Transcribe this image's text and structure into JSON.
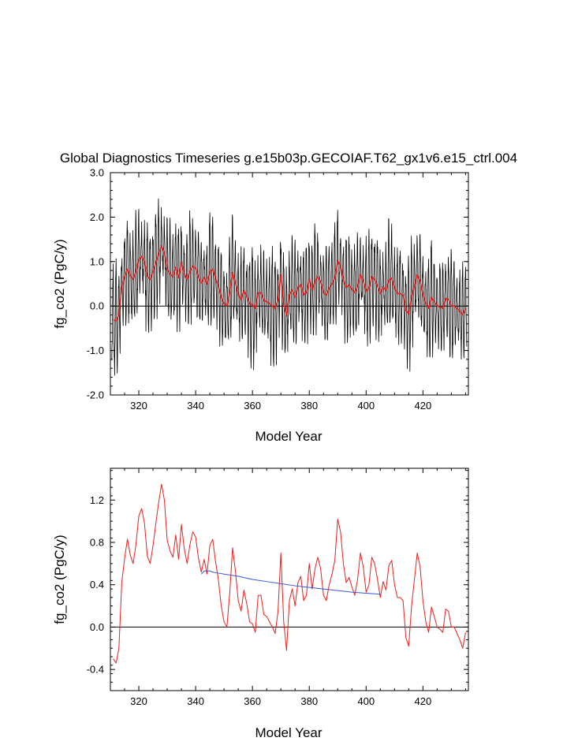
{
  "title": "Global Diagnostics Timeseries g.e15b03p.GECOIAF.T62_gx1v6.e15_ctrl.004",
  "colors": {
    "monthly": "#000000",
    "annual": "#e8201e",
    "trend": "#3a56d4",
    "zero": "#000000"
  },
  "chart_data": [
    {
      "type": "line",
      "ylabel": "fg_co2 (PgC/y)",
      "xlabel": "Model Year",
      "xlim": [
        310,
        436
      ],
      "ylim": [
        -2.0,
        3.0
      ],
      "xticks": [
        320,
        340,
        360,
        380,
        400,
        420
      ],
      "xtick_labels": [
        "320",
        "340",
        "360",
        "380",
        "400",
        "420"
      ],
      "yticks": [
        -2,
        -1,
        0,
        1,
        2,
        3
      ],
      "ytick_labels": [
        "-2.0",
        "-1.0",
        "0.0",
        "1.0",
        "2.0",
        "3.0"
      ],
      "reference_line_y": 0,
      "series": [
        {
          "style": "monthly",
          "color": "#000000",
          "note_values": "monthly values oscillate around the annual means with amplitude about ±1.0 PgC/y; max ~2.7 near year 329, min ~-1.45 near years 311 and 375"
        },
        {
          "style": "annual-mean",
          "color": "#e8201e",
          "x": [
            311,
            312,
            313,
            314,
            315,
            316,
            317,
            318,
            319,
            320,
            321,
            322,
            323,
            324,
            325,
            326,
            327,
            328,
            329,
            330,
            331,
            332,
            333,
            334,
            335,
            336,
            337,
            338,
            339,
            340,
            341,
            342,
            343,
            344,
            345,
            346,
            347,
            348,
            349,
            350,
            351,
            352,
            353,
            354,
            355,
            356,
            357,
            358,
            359,
            360,
            361,
            362,
            363,
            364,
            365,
            366,
            367,
            368,
            369,
            370,
            371,
            372,
            373,
            374,
            375,
            376,
            377,
            378,
            379,
            380,
            381,
            382,
            383,
            384,
            385,
            386,
            387,
            388,
            389,
            390,
            391,
            392,
            393,
            394,
            395,
            396,
            397,
            398,
            399,
            400,
            401,
            402,
            403,
            404,
            405,
            406,
            407,
            408,
            409,
            410,
            411,
            412,
            413,
            414,
            415,
            416,
            417,
            418,
            419,
            420,
            421,
            422,
            423,
            424,
            425,
            426,
            427,
            428,
            429,
            430,
            431,
            432,
            433,
            434,
            435
          ],
          "y": [
            -0.3,
            -0.34,
            -0.2,
            0.42,
            0.65,
            0.83,
            0.68,
            0.6,
            0.78,
            1.05,
            1.12,
            0.98,
            0.67,
            0.6,
            0.77,
            0.98,
            1.18,
            1.35,
            1.2,
            0.82,
            0.72,
            0.66,
            0.87,
            0.64,
            0.97,
            0.74,
            0.6,
            0.78,
            0.9,
            0.85,
            0.65,
            0.52,
            0.64,
            0.5,
            0.77,
            0.83,
            0.62,
            0.45,
            0.2,
            0.05,
            0.0,
            0.32,
            0.75,
            0.53,
            0.25,
            0.15,
            0.35,
            0.22,
            0.05,
            0.03,
            -0.05,
            0.3,
            0.3,
            0.12,
            0.1,
            0.05,
            0.0,
            -0.06,
            0.15,
            0.7,
            0.05,
            -0.22,
            0.25,
            0.36,
            0.2,
            0.42,
            0.48,
            0.25,
            0.3,
            0.6,
            0.36,
            0.55,
            0.66,
            0.55,
            0.3,
            0.25,
            0.4,
            0.5,
            0.63,
            1.02,
            0.9,
            0.6,
            0.42,
            0.47,
            0.38,
            0.3,
            0.45,
            0.7,
            0.57,
            0.33,
            0.4,
            0.66,
            0.6,
            0.45,
            0.28,
            0.43,
            0.35,
            0.58,
            0.63,
            0.4,
            0.28,
            0.28,
            0.25,
            -0.1,
            -0.18,
            0.2,
            0.45,
            0.7,
            0.57,
            0.25,
            0.05,
            -0.05,
            0.19,
            0.1,
            0.0,
            -0.02,
            -0.05,
            0.17,
            0.15,
            0.0,
            0.0,
            -0.06,
            -0.12,
            -0.2,
            -0.05
          ]
        }
      ]
    },
    {
      "type": "line",
      "ylabel": "fg_co2 (PgC/y)",
      "xlabel": "Model Year",
      "xlim": [
        310,
        436
      ],
      "ylim": [
        -0.6,
        1.5
      ],
      "xticks": [
        320,
        340,
        360,
        380,
        400,
        420
      ],
      "xtick_labels": [
        "320",
        "340",
        "360",
        "380",
        "400",
        "420"
      ],
      "yticks": [
        -0.4,
        0,
        0.4,
        0.8,
        1.2
      ],
      "ytick_labels": [
        "-0.4",
        "0.0",
        "0.4",
        "0.8",
        "1.2"
      ],
      "reference_line_y": 0,
      "series": [
        {
          "style": "annual-mean",
          "color": "#e8201e",
          "ref": "same as upper panel annual means"
        },
        {
          "style": "trend",
          "color": "#3a56d4",
          "x": [
            342,
            343,
            344,
            345,
            346,
            348,
            350,
            355,
            360,
            365,
            370,
            375,
            380,
            385,
            390,
            395,
            400,
            405
          ],
          "y": [
            0.5,
            0.53,
            0.53,
            0.53,
            0.52,
            0.51,
            0.5,
            0.48,
            0.45,
            0.43,
            0.41,
            0.39,
            0.375,
            0.36,
            0.345,
            0.33,
            0.32,
            0.31
          ]
        }
      ]
    }
  ]
}
